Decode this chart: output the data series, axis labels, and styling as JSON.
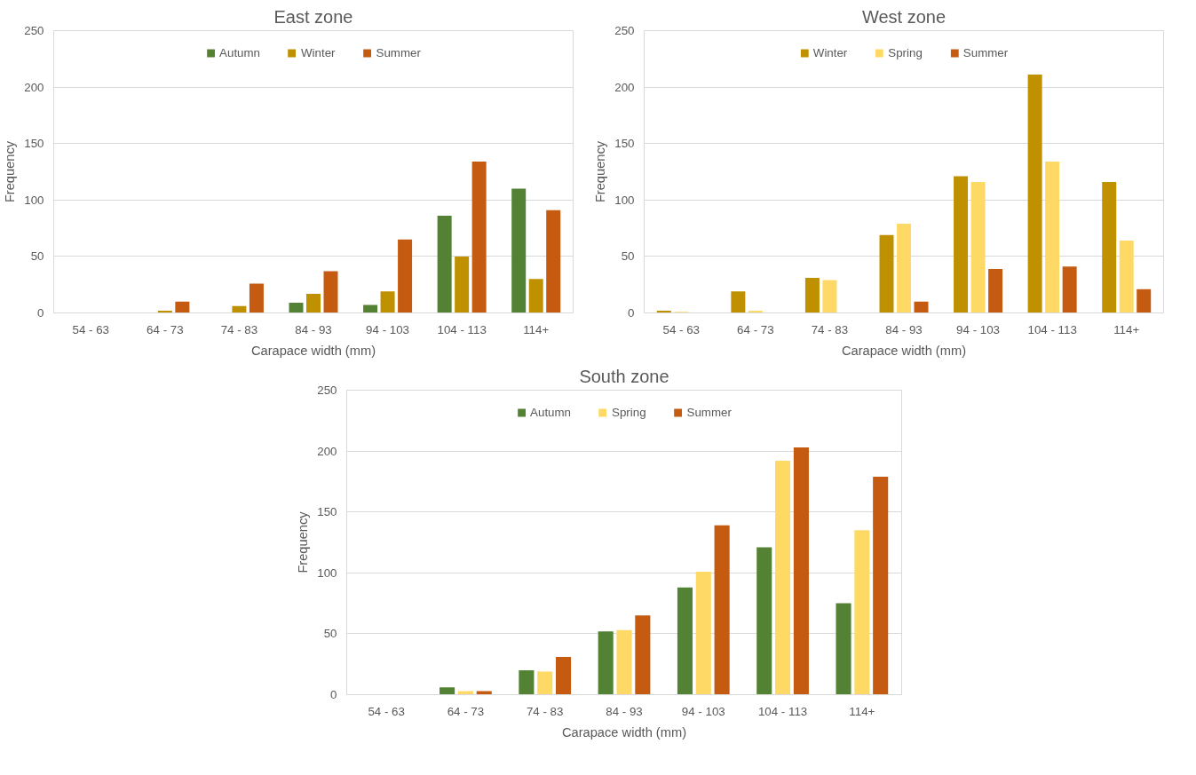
{
  "chart_data": [
    {
      "type": "bar",
      "title": "East zone",
      "xlabel": "Carapace width (mm)",
      "ylabel": "Frequency",
      "categories": [
        "54 - 63",
        "64 - 73",
        "74 - 83",
        "84 - 93",
        "94 - 103",
        "104 - 113",
        "114+"
      ],
      "series": [
        {
          "name": "Autumn",
          "color": "#548235",
          "values": [
            0,
            0,
            0,
            9,
            7,
            86,
            110
          ]
        },
        {
          "name": "Winter",
          "color": "#bf9000",
          "values": [
            0,
            2,
            6,
            17,
            19,
            50,
            30
          ]
        },
        {
          "name": "Summer",
          "color": "#c55a11",
          "values": [
            0,
            10,
            26,
            37,
            65,
            134,
            91
          ]
        }
      ],
      "ylim": [
        0,
        250
      ],
      "yticks": [
        0,
        50,
        100,
        150,
        200,
        250
      ],
      "grid": "y",
      "legend": "top"
    },
    {
      "type": "bar",
      "title": "West zone",
      "xlabel": "Carapace width (mm)",
      "ylabel": "Frequency",
      "categories": [
        "54 - 63",
        "64 - 73",
        "74 - 83",
        "84 - 93",
        "94 - 103",
        "104 - 113",
        "114+"
      ],
      "series": [
        {
          "name": "Winter",
          "color": "#bf9000",
          "values": [
            2,
            19,
            31,
            69,
            121,
            211,
            116
          ]
        },
        {
          "name": "Spring",
          "color": "#ffd966",
          "values": [
            1,
            2,
            29,
            79,
            116,
            134,
            64
          ]
        },
        {
          "name": "Summer",
          "color": "#c55a11",
          "values": [
            0,
            0,
            0,
            10,
            39,
            41,
            21
          ]
        }
      ],
      "ylim": [
        0,
        250
      ],
      "yticks": [
        0,
        50,
        100,
        150,
        200,
        250
      ],
      "grid": "y",
      "legend": "top"
    },
    {
      "type": "bar",
      "title": "South zone",
      "xlabel": "Carapace width (mm)",
      "ylabel": "Frequency",
      "categories": [
        "54 - 63",
        "64 - 73",
        "74 - 83",
        "84 - 93",
        "94 - 103",
        "104 - 113",
        "114+"
      ],
      "series": [
        {
          "name": "Autumn",
          "color": "#548235",
          "values": [
            0,
            6,
            20,
            52,
            88,
            121,
            75
          ]
        },
        {
          "name": "Spring",
          "color": "#ffd966",
          "values": [
            0,
            3,
            19,
            53,
            101,
            192,
            135
          ]
        },
        {
          "name": "Summer",
          "color": "#c55a11",
          "values": [
            0,
            3,
            31,
            65,
            139,
            203,
            179
          ]
        }
      ],
      "ylim": [
        0,
        250
      ],
      "yticks": [
        0,
        50,
        100,
        150,
        200,
        250
      ],
      "grid": "y",
      "legend": "top"
    }
  ]
}
